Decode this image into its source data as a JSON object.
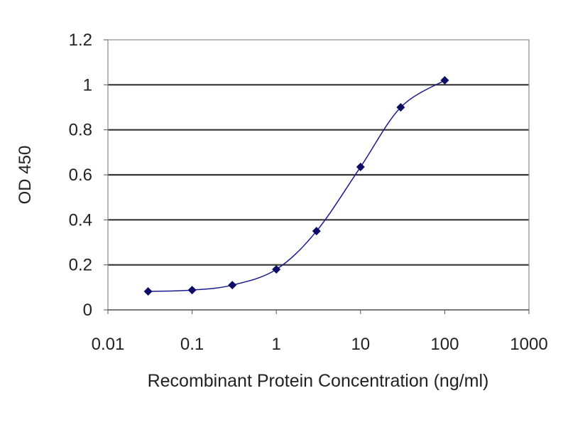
{
  "chart_data": {
    "type": "line",
    "title": "",
    "xlabel": "Recombinant Protein Concentration (ng/ml)",
    "ylabel": "OD 450",
    "xscale": "log",
    "xlim": [
      0.01,
      1000
    ],
    "ylim": [
      0,
      1.2
    ],
    "xticks": [
      "0.01",
      "0.1",
      "1",
      "10",
      "100",
      "1000"
    ],
    "yticks": [
      "0",
      "0.2",
      "0.4",
      "0.6",
      "0.8",
      "1",
      "1.2"
    ],
    "grid": "horizontal",
    "colors": {
      "series": "#1a1a8c",
      "marker": "#0d0d66",
      "grid": "#333333"
    },
    "series": [
      {
        "x": [
          0.03,
          0.1,
          0.3,
          1,
          3,
          10,
          30,
          100
        ],
        "y": [
          0.082,
          0.088,
          0.11,
          0.18,
          0.35,
          0.635,
          0.9,
          1.02
        ]
      }
    ]
  }
}
